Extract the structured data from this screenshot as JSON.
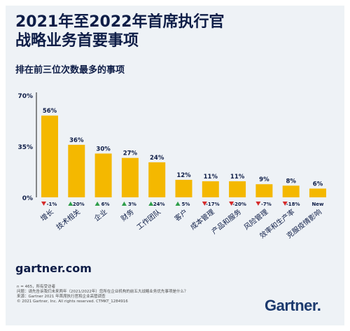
{
  "header": {
    "title_line1": "2021年至2022年首席执行官",
    "title_line2": "战略业务首要事项",
    "subtitle": "排在前三位次数最多的事项"
  },
  "colors": {
    "bar": "#f4b800",
    "up": "#2e9e4a",
    "down": "#d52b2b",
    "text": "#0e1d47"
  },
  "chart_data": {
    "type": "bar",
    "categories": [
      "增长",
      "技术相关",
      "企业",
      "财务",
      "工作团队",
      "客户",
      "成本管理",
      "产品和服务",
      "风险管理",
      "效率和生产率",
      "克服疫情影响"
    ],
    "values": [
      56,
      36,
      30,
      27,
      24,
      12,
      11,
      11,
      9,
      8,
      6
    ],
    "value_labels": [
      "56%",
      "36%",
      "30%",
      "27%",
      "24%",
      "12%",
      "11%",
      "11%",
      "9%",
      "8%",
      "6%"
    ],
    "changes": [
      "-1%",
      "20%",
      "6%",
      "3%",
      "24%",
      "5%",
      "-17%",
      "-20%",
      "-7%",
      "-18%",
      "New"
    ],
    "change_direction": [
      "down",
      "up",
      "up",
      "up",
      "up",
      "up",
      "down",
      "down",
      "down",
      "down",
      "none"
    ],
    "y_ticks": [
      "70%",
      "35%",
      "0%"
    ],
    "ylim": [
      0,
      70
    ],
    "grid": false
  },
  "footer": {
    "site": "gartner.com",
    "note1": "n = 465，所有受访者",
    "note2": "问题：请先告诉我们未来两年（2021/2022年）您所在企业机构的前五大战略业务优先事项是什么？",
    "note3": "来源：Gartner 2021 年首席执行官和企业高管调查",
    "note4": "© 2021 Gartner, Inc. All rights reserved. CTMKT_1284916",
    "logo": "Gartner"
  }
}
